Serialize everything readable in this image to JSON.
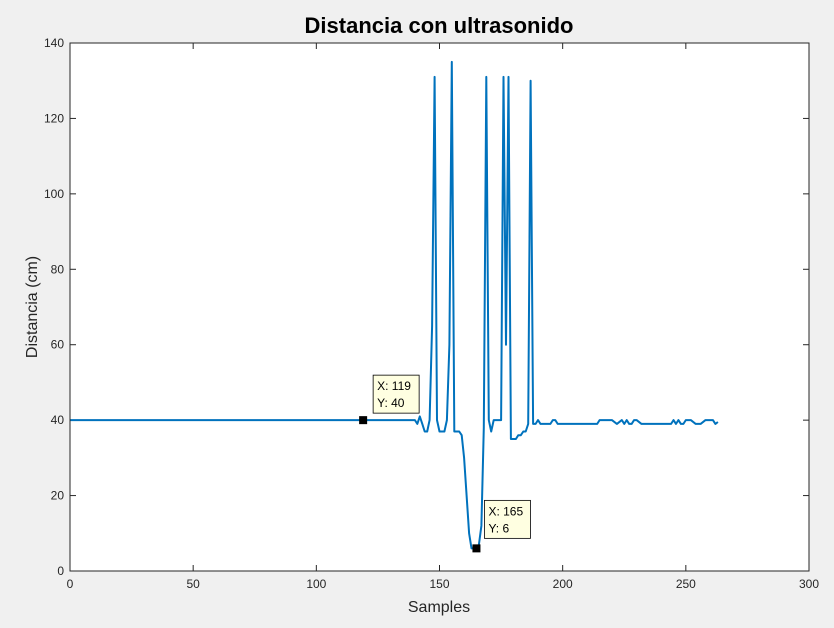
{
  "chart_data": {
    "type": "line",
    "title": "Distancia con ultrasonido",
    "xlabel": "Samples",
    "ylabel": "Distancia (cm)",
    "xlim": [
      0,
      300
    ],
    "ylim": [
      0,
      140
    ],
    "xticks": [
      0,
      50,
      100,
      150,
      200,
      250,
      300
    ],
    "yticks": [
      0,
      20,
      40,
      60,
      80,
      100,
      120,
      140
    ],
    "grid": false,
    "series": [
      {
        "color": "#0072BD",
        "x": [
          0,
          140,
          141,
          142,
          143,
          144,
          145,
          146,
          147,
          148,
          149,
          150,
          151,
          152,
          153,
          154,
          155,
          156,
          157,
          158,
          159,
          160,
          161,
          162,
          163,
          164,
          165,
          166,
          167,
          168,
          169,
          170,
          171,
          172,
          173,
          174,
          175,
          176,
          177,
          178,
          179,
          180,
          181,
          182,
          183,
          184,
          185,
          186,
          187,
          188,
          189,
          190,
          191,
          192,
          193,
          194,
          195,
          196,
          197,
          198,
          200,
          205,
          210,
          214,
          215,
          216,
          218,
          220,
          222,
          224,
          225,
          226,
          227,
          228,
          229,
          230,
          232,
          234,
          236,
          240,
          244,
          245,
          246,
          247,
          248,
          249,
          250,
          252,
          254,
          256,
          258,
          260,
          261,
          262,
          263
        ],
        "y": [
          40,
          40,
          39,
          41,
          39,
          37,
          37,
          40,
          65,
          131,
          40,
          37,
          37,
          37,
          40,
          60,
          135,
          37,
          37,
          37,
          36,
          30,
          20,
          10,
          6,
          6,
          6,
          7,
          12,
          38,
          131,
          40,
          37,
          40,
          40,
          40,
          40,
          131,
          60,
          131,
          35,
          35,
          35,
          36,
          36,
          37,
          37,
          39,
          130,
          39,
          39,
          40,
          39,
          39,
          39,
          39,
          39,
          40,
          40,
          39,
          39,
          39,
          39,
          39,
          40,
          40,
          40,
          40,
          39,
          40,
          39,
          40,
          39,
          39,
          40,
          40,
          39,
          39,
          39,
          39,
          39,
          40,
          39,
          40,
          39,
          39,
          40,
          40,
          39,
          39,
          40,
          40,
          40,
          39,
          39.5
        ]
      }
    ],
    "datatips": [
      {
        "x": 119,
        "y": 40,
        "line1": "X: 119",
        "line2": "Y: 40"
      },
      {
        "x": 165,
        "y": 6,
        "line1": "X: 165",
        "line2": "Y: 6"
      }
    ]
  }
}
